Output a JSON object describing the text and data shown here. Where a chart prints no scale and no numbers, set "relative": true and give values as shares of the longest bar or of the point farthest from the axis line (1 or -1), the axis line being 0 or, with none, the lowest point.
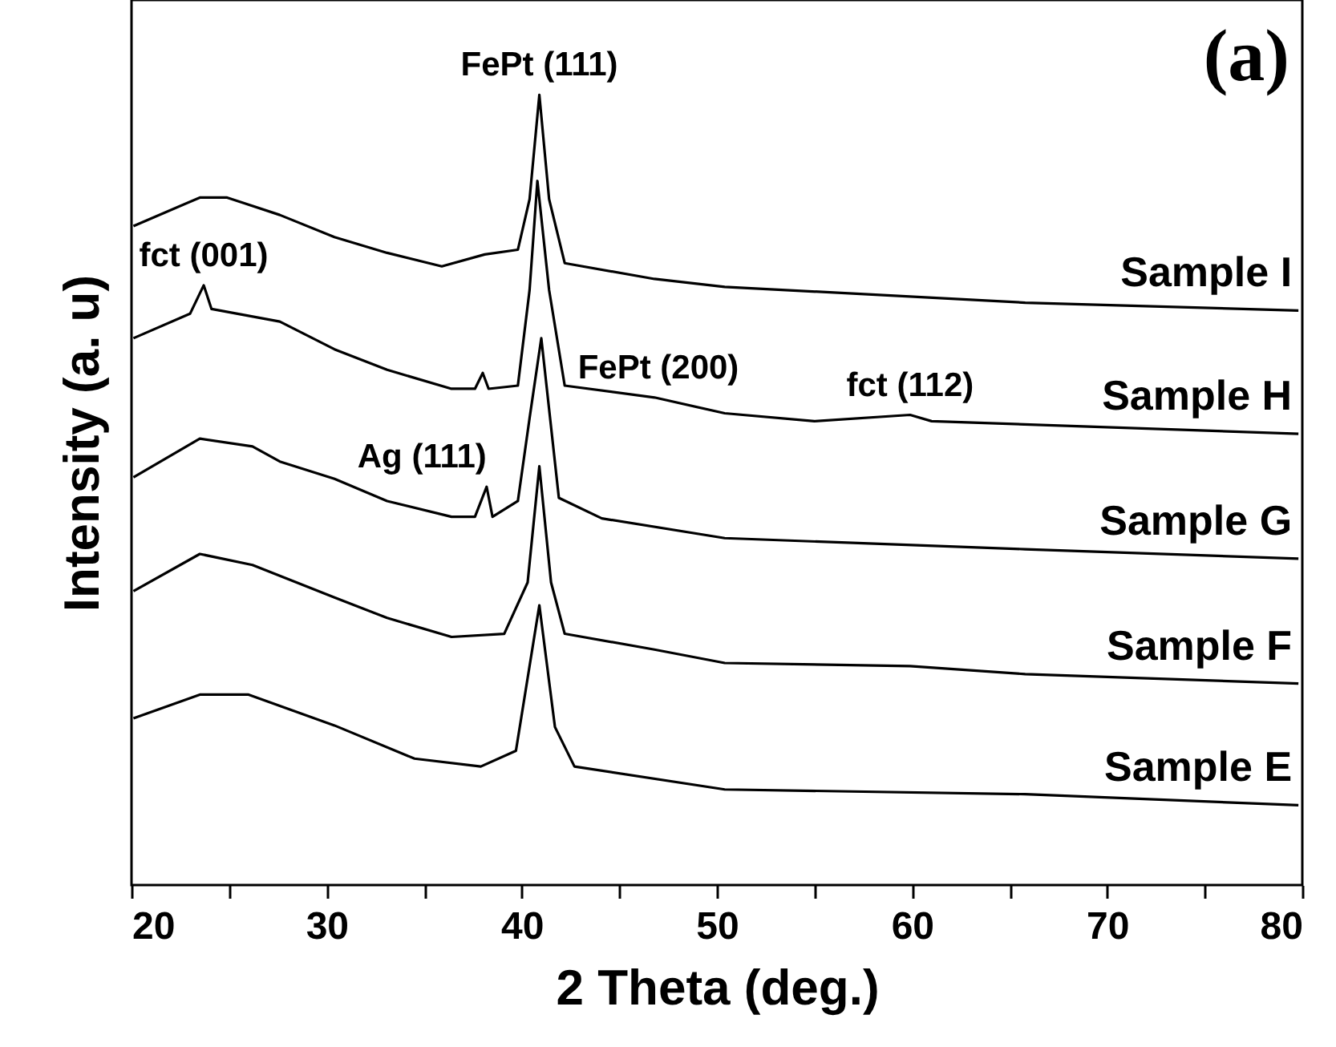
{
  "chart_data": {
    "type": "line",
    "relative": true,
    "xlabel": "2 Theta (deg.)",
    "ylabel": "Intensity (a. u)",
    "xlim": [
      20,
      80
    ],
    "xticks": [
      20,
      {
        "value": 25,
        "label": null
      },
      30,
      {
        "value": 35,
        "label": null
      },
      40,
      {
        "value": 45,
        "label": null
      },
      50,
      {
        "value": 55,
        "label": null
      },
      60,
      {
        "value": 65,
        "label": null
      },
      70,
      {
        "value": 75,
        "label": null
      },
      80
    ],
    "grid": false,
    "marker": "none",
    "line_style": "solid",
    "annotations": [
      {
        "text": "FePt (111)",
        "x": 40.9,
        "y": 1.0
      },
      {
        "text": "fct (001)",
        "x": 23.7,
        "y": 0.759
      },
      {
        "text": "FePt (200)",
        "x": 47,
        "y": 0.617
      },
      {
        "text": "fct (112)",
        "x": 59.9,
        "y": 0.595
      },
      {
        "text": "Ag (111)",
        "x": 38.2,
        "y": 0.504
      },
      "(a)"
    ],
    "series": [
      {
        "name": "Sample I",
        "color": "#000000",
        "x": [
          20.1,
          23.5,
          24.9,
          27.6,
          30.4,
          33.1,
          35.9,
          38.1,
          39.8,
          40.4,
          40.9,
          41.4,
          42.2,
          46.8,
          50.4,
          65.8,
          79.8
        ],
        "values": [
          0.834,
          0.87,
          0.87,
          0.848,
          0.82,
          0.8,
          0.783,
          0.798,
          0.804,
          0.868,
          1.0,
          0.868,
          0.787,
          0.767,
          0.757,
          0.737,
          0.727
        ]
      },
      {
        "name": "Sample H",
        "color": "#000000",
        "x": [
          20.1,
          23.0,
          23.7,
          24.1,
          27.6,
          30.4,
          33.1,
          36.4,
          37.6,
          38.0,
          38.3,
          39.8,
          40.4,
          40.8,
          41.4,
          42.2,
          46.8,
          50.4,
          55.0,
          59.9,
          61.0,
          79.8
        ],
        "values": [
          0.692,
          0.723,
          0.759,
          0.729,
          0.713,
          0.678,
          0.652,
          0.628,
          0.628,
          0.648,
          0.628,
          0.632,
          0.753,
          0.891,
          0.753,
          0.632,
          0.617,
          0.597,
          0.587,
          0.595,
          0.587,
          0.571
        ]
      },
      {
        "name": "Sample G",
        "color": "#000000",
        "x": [
          20.1,
          23.5,
          26.2,
          27.6,
          30.4,
          33.1,
          36.4,
          37.6,
          38.2,
          38.5,
          39.8,
          40.4,
          41.0,
          41.9,
          44.1,
          50.4,
          65.8,
          79.8
        ],
        "values": [
          0.516,
          0.565,
          0.555,
          0.536,
          0.514,
          0.486,
          0.466,
          0.466,
          0.504,
          0.466,
          0.486,
          0.591,
          0.692,
          0.49,
          0.464,
          0.439,
          0.425,
          0.413
        ]
      },
      {
        "name": "Sample F",
        "color": "#000000",
        "x": [
          20.1,
          23.5,
          26.2,
          30.4,
          33.1,
          36.4,
          39.1,
          40.3,
          40.9,
          41.5,
          42.2,
          46.8,
          50.4,
          59.9,
          65.8,
          79.8
        ],
        "values": [
          0.372,
          0.419,
          0.405,
          0.364,
          0.338,
          0.314,
          0.318,
          0.383,
          0.53,
          0.383,
          0.318,
          0.298,
          0.281,
          0.277,
          0.267,
          0.255
        ]
      },
      {
        "name": "Sample E",
        "color": "#000000",
        "x": [
          20.1,
          23.5,
          26.0,
          30.4,
          34.5,
          37.9,
          39.7,
          40.9,
          41.7,
          42.7,
          50.4,
          65.8,
          79.8
        ],
        "values": [
          0.211,
          0.241,
          0.241,
          0.202,
          0.16,
          0.15,
          0.17,
          0.354,
          0.2,
          0.15,
          0.121,
          0.115,
          0.101
        ]
      }
    ]
  }
}
